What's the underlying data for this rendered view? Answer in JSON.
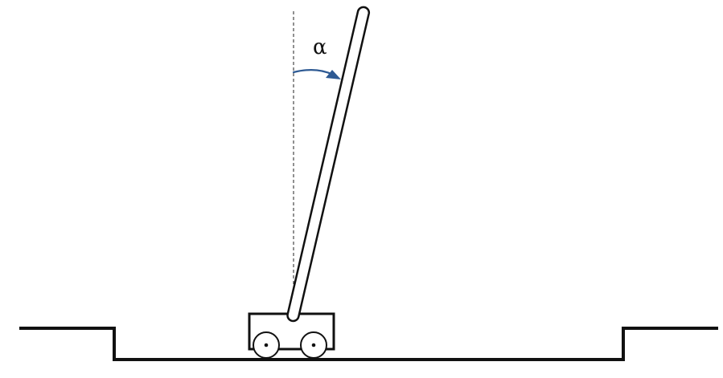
{
  "angle_label": "α",
  "colors": {
    "angle_arrow": "#2e5a93",
    "lines": "#111111",
    "background": "#ffffff"
  }
}
